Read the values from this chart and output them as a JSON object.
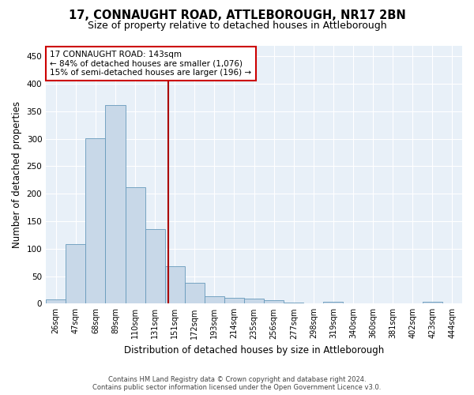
{
  "title": "17, CONNAUGHT ROAD, ATTLEBOROUGH, NR17 2BN",
  "subtitle": "Size of property relative to detached houses in Attleborough",
  "xlabel": "Distribution of detached houses by size in Attleborough",
  "ylabel": "Number of detached properties",
  "footer_line1": "Contains HM Land Registry data © Crown copyright and database right 2024.",
  "footer_line2": "Contains public sector information licensed under the Open Government Licence v3.0.",
  "bar_labels": [
    "26sqm",
    "47sqm",
    "68sqm",
    "89sqm",
    "110sqm",
    "131sqm",
    "151sqm",
    "172sqm",
    "193sqm",
    "214sqm",
    "235sqm",
    "256sqm",
    "277sqm",
    "298sqm",
    "319sqm",
    "340sqm",
    "360sqm",
    "381sqm",
    "402sqm",
    "423sqm",
    "444sqm"
  ],
  "bar_values": [
    7,
    108,
    301,
    362,
    212,
    136,
    68,
    38,
    13,
    10,
    9,
    6,
    2,
    0,
    3,
    0,
    0,
    0,
    0,
    4,
    0
  ],
  "bar_color": "#c8d8e8",
  "bar_edge_color": "#6699bb",
  "vline_x_data": 5.67,
  "vline_color": "#aa0000",
  "ylim": [
    0,
    470
  ],
  "yticks": [
    0,
    50,
    100,
    150,
    200,
    250,
    300,
    350,
    400,
    450
  ],
  "annotation_text_line1": "17 CONNAUGHT ROAD: 143sqm",
  "annotation_text_line2": "← 84% of detached houses are smaller (1,076)",
  "annotation_text_line3": "15% of semi-detached houses are larger (196) →",
  "annotation_box_color": "#ffffff",
  "annotation_box_edge_color": "#cc0000",
  "bg_color": "#e8f0f8",
  "fig_bg_color": "#ffffff",
  "title_fontsize": 10.5,
  "subtitle_fontsize": 9,
  "tick_label_fontsize": 7,
  "ylabel_fontsize": 8.5,
  "xlabel_fontsize": 8.5,
  "annotation_fontsize": 7.5
}
